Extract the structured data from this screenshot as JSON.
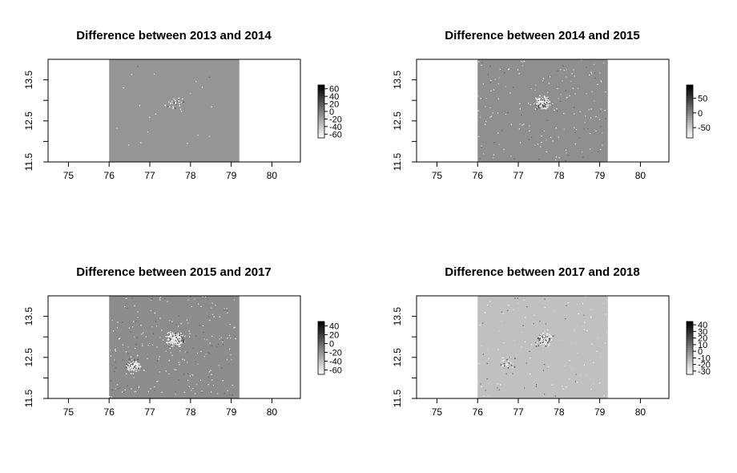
{
  "chart_data": [
    {
      "type": "heatmap",
      "title": "Difference between 2013 and 2014",
      "x_ticks": [
        75,
        76,
        77,
        78,
        79,
        80
      ],
      "y_ticks": [
        11.5,
        12.5,
        13.5
      ],
      "xlim": [
        74.5,
        80.7
      ],
      "ylim": [
        11.5,
        14.0
      ],
      "data_extent": {
        "x": [
          76.0,
          79.2
        ],
        "y": [
          11.5,
          14.0
        ]
      },
      "background_color": "#959595",
      "legend": {
        "ticks": [
          60,
          40,
          20,
          0,
          -20,
          -40,
          -60
        ],
        "range": [
          -70,
          70
        ],
        "placement": "right"
      },
      "hotspots": [
        {
          "x": 77.6,
          "y": 12.95,
          "intensity": "low"
        }
      ]
    },
    {
      "type": "heatmap",
      "title": "Difference between 2014 and 2015",
      "x_ticks": [
        75,
        76,
        77,
        78,
        79,
        80
      ],
      "y_ticks": [
        11.5,
        12.5,
        13.5
      ],
      "xlim": [
        74.5,
        80.7
      ],
      "ylim": [
        11.5,
        14.0
      ],
      "data_extent": {
        "x": [
          76.0,
          79.2
        ],
        "y": [
          11.5,
          14.0
        ]
      },
      "background_color": "#8f8f8f",
      "legend": {
        "ticks": [
          50,
          0,
          -50
        ],
        "range": [
          -85,
          95
        ],
        "placement": "right"
      },
      "hotspots": [
        {
          "x": 77.6,
          "y": 12.95,
          "intensity": "medium"
        }
      ]
    },
    {
      "type": "heatmap",
      "title": "Difference between 2015 and 2017",
      "x_ticks": [
        75,
        76,
        77,
        78,
        79,
        80
      ],
      "y_ticks": [
        11.5,
        12.5,
        13.5
      ],
      "xlim": [
        74.5,
        80.7
      ],
      "ylim": [
        11.5,
        14.0
      ],
      "data_extent": {
        "x": [
          76.0,
          79.2
        ],
        "y": [
          11.5,
          14.0
        ]
      },
      "background_color": "#8c8c8c",
      "legend": {
        "ticks": [
          40,
          20,
          0,
          -20,
          -40,
          -60
        ],
        "range": [
          -70,
          50
        ],
        "placement": "right"
      },
      "hotspots": [
        {
          "x": 77.6,
          "y": 12.95,
          "intensity": "high"
        },
        {
          "x": 76.6,
          "y": 12.3,
          "intensity": "medium"
        }
      ]
    },
    {
      "type": "heatmap",
      "title": "Difference between 2017 and 2018",
      "x_ticks": [
        75,
        76,
        77,
        78,
        79,
        80
      ],
      "y_ticks": [
        11.5,
        12.5,
        13.5
      ],
      "xlim": [
        74.5,
        80.7
      ],
      "ylim": [
        11.5,
        14.0
      ],
      "data_extent": {
        "x": [
          76.0,
          79.2
        ],
        "y": [
          11.5,
          14.0
        ]
      },
      "background_color": "#c0c0c0",
      "legend": {
        "ticks": [
          40,
          30,
          20,
          10,
          0,
          -10,
          -20,
          -30
        ],
        "range": [
          -35,
          45
        ],
        "placement": "right"
      },
      "hotspots": [
        {
          "x": 77.6,
          "y": 12.95,
          "intensity": "medium"
        },
        {
          "x": 76.7,
          "y": 12.35,
          "intensity": "low"
        }
      ]
    }
  ]
}
